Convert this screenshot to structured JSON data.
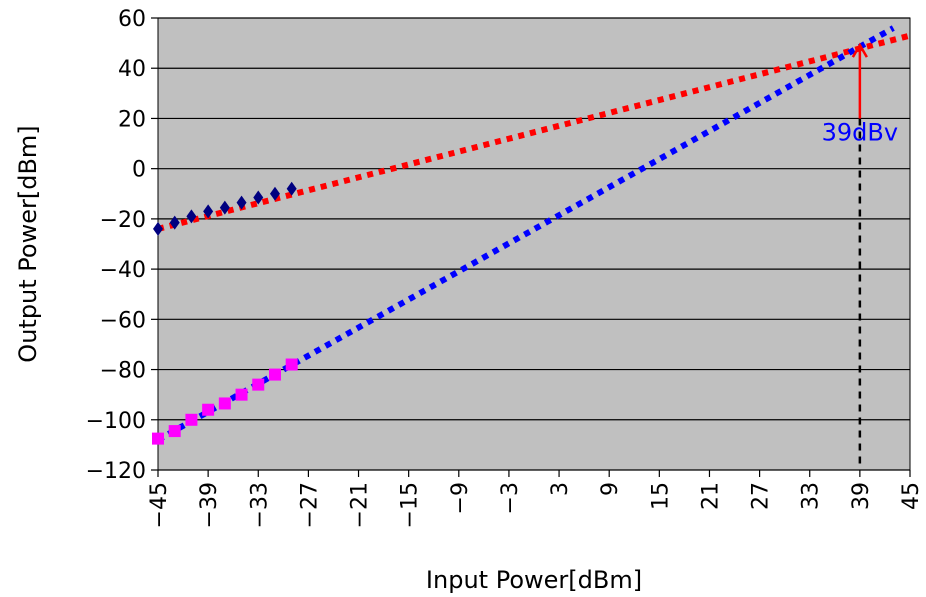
{
  "chart_data": {
    "type": "line",
    "xlabel": "Input Power[dBm]",
    "ylabel": "Output Power[dBm]",
    "xlim": [
      -45,
      45
    ],
    "ylim": [
      -120,
      60
    ],
    "xticks": [
      -45,
      -39,
      -33,
      -27,
      -21,
      -15,
      -9,
      -3,
      3,
      9,
      15,
      21,
      27,
      33,
      39,
      45
    ],
    "yticks": [
      -120,
      -100,
      -80,
      -60,
      -40,
      -20,
      0,
      20,
      40,
      60
    ],
    "grid": "horizontal",
    "colors": {
      "plot_background": "#c0c0c0",
      "fundamental_fit": "#ff0000",
      "fundamental_points": "#000080",
      "im3_fit": "#0000ff",
      "im3_points": "#ff00ff",
      "annotation": "#0000ff",
      "arrow": "#ff0000"
    },
    "series": [
      {
        "marker": "diamond",
        "style": "points",
        "x": [
          -45,
          -43,
          -41,
          -39,
          -37,
          -35,
          -33,
          -31,
          -29
        ],
        "y": [
          -24,
          -21.5,
          -19,
          -17,
          -15.5,
          -13.5,
          -11.5,
          -10,
          -8
        ]
      },
      {
        "marker": "square",
        "style": "points",
        "x": [
          -45,
          -43,
          -41,
          -39,
          -37,
          -35,
          -33,
          -31,
          -29
        ],
        "y": [
          -107.5,
          -104.5,
          -100,
          -96,
          -93.5,
          -90,
          -86,
          -82,
          -78
        ]
      },
      {
        "style": "dotted",
        "x": [
          -45,
          45
        ],
        "y": [
          -24,
          53
        ]
      },
      {
        "style": "dotted",
        "x": [
          -45,
          43
        ],
        "y": [
          -108,
          56
        ]
      }
    ],
    "annotations": [
      {
        "text": "39dBv",
        "x": 39,
        "y": 50
      }
    ]
  }
}
